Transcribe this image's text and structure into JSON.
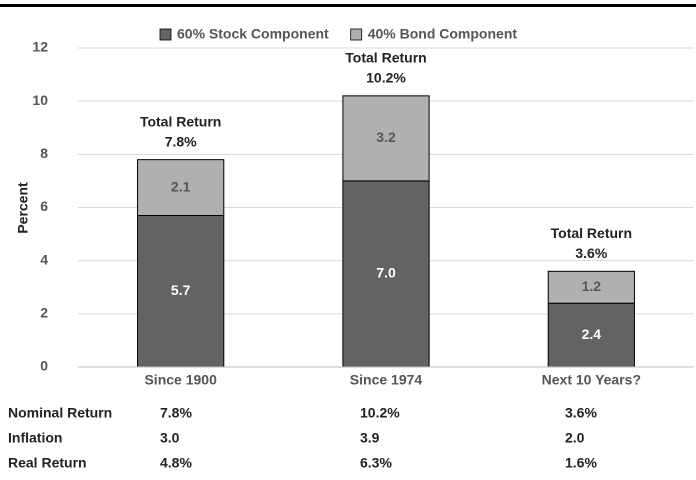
{
  "chart_data": {
    "type": "stacked_bar",
    "y_label": "Percent",
    "categories": [
      "Since 1900",
      "Since 1974",
      "Next 10 Years?"
    ],
    "series": [
      {
        "name": "60% Stock Component",
        "color": "#636363",
        "values": [
          5.7,
          7.0,
          2.4
        ],
        "value_labels": [
          "5.7",
          "7.0",
          "2.4"
        ]
      },
      {
        "name": "40% Bond Component",
        "color": "#b0b0b0",
        "values": [
          2.1,
          3.2,
          1.2
        ],
        "value_labels": [
          "2.1",
          "3.2",
          "1.2"
        ]
      }
    ],
    "total_title": "Total Return",
    "total_labels": [
      "7.8%",
      "10.2%",
      "3.6%"
    ],
    "ylim": [
      0,
      12
    ],
    "yticks": [
      0,
      2,
      4,
      6,
      8,
      10,
      12
    ],
    "grid": true,
    "legend": "top"
  },
  "table": {
    "rows": [
      [
        "Nominal Return",
        "7.8%",
        "10.2%",
        "3.6%"
      ],
      [
        "Inflation",
        "3.0",
        "3.9",
        "2.0"
      ],
      [
        "Real Return",
        "4.8%",
        "6.3%",
        "1.6%"
      ]
    ]
  }
}
